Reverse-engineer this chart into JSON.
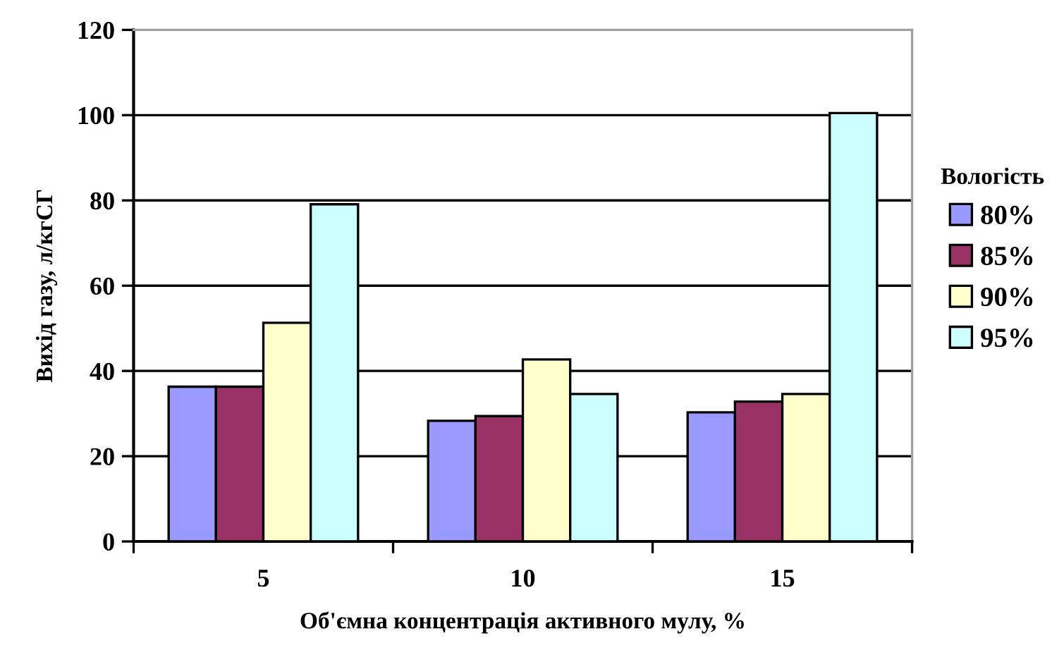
{
  "chart_data": {
    "type": "bar",
    "xlabel": "Об'ємна концентрація активного мулу, %",
    "ylabel": "Вихід газу, л/кгСГ",
    "legend_title": "Вологість",
    "categories": [
      "5",
      "10",
      "15"
    ],
    "series": [
      {
        "name": "80%",
        "color": "#9999ff",
        "values": [
          36.3,
          28.3,
          30.3
        ]
      },
      {
        "name": "85%",
        "color": "#993366",
        "values": [
          36.3,
          29.4,
          32.8
        ]
      },
      {
        "name": "90%",
        "color": "#ffffcc",
        "values": [
          51.3,
          42.7,
          34.6
        ]
      },
      {
        "name": "95%",
        "color": "#ccffff",
        "values": [
          79.1,
          34.6,
          100.5
        ]
      }
    ],
    "ylim": [
      0,
      120
    ],
    "yticks": [
      0,
      20,
      40,
      60,
      80,
      100,
      120
    ],
    "grid": "y",
    "legend": "right"
  }
}
